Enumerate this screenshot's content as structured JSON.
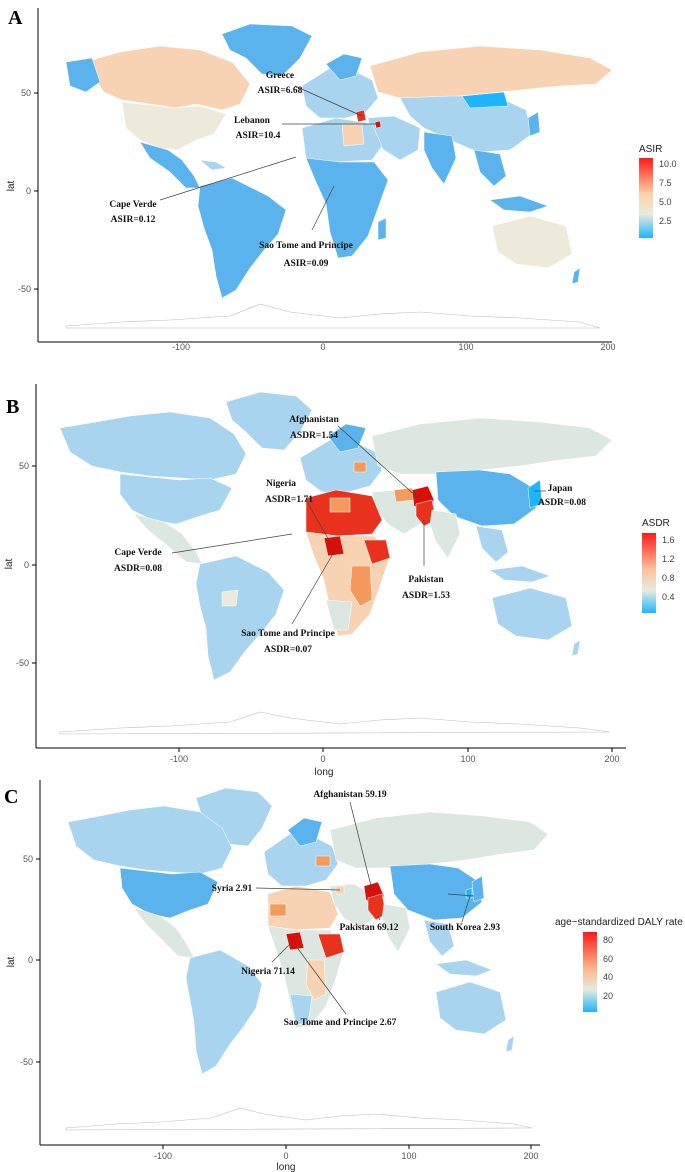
{
  "figure": {
    "panels": [
      {
        "id": "A",
        "letter": "A",
        "ylabel": "lat",
        "xlabel": "",
        "x_ticks": [
          "-100",
          "0",
          "100",
          "200"
        ],
        "y_ticks": [
          "50",
          "0",
          "-50"
        ],
        "legend": {
          "title": "ASIR",
          "ticks": [
            "10.0",
            "7.5",
            "5.0",
            "2.5"
          ],
          "colors": [
            "#ff1a1a",
            "#ffd1a8",
            "#e6ecdc",
            "#1eb4ff"
          ]
        },
        "annotations": [
          {
            "text": "Greece",
            "value": "ASIR=6.68"
          },
          {
            "text": "Lebanon",
            "value": "ASIR=10.4"
          },
          {
            "text": "Cape Verde",
            "value": "ASIR=0.12"
          },
          {
            "text": "Sao Tome and Principe",
            "value": "ASIR=0.09"
          }
        ]
      },
      {
        "id": "B",
        "letter": "B",
        "ylabel": "lat",
        "xlabel": "long",
        "x_ticks": [
          "-100",
          "0",
          "100",
          "200"
        ],
        "y_ticks": [
          "50",
          "0",
          "-50"
        ],
        "legend": {
          "title": "ASDR",
          "ticks": [
            "1.6",
            "1.2",
            "0.8",
            "0.4"
          ],
          "colors": [
            "#ff1a1a",
            "#ffc19a",
            "#e6ecdc",
            "#1eb4ff"
          ]
        },
        "annotations": [
          {
            "text": "Afghanistan",
            "value": "ASDR=1.54"
          },
          {
            "text": "Nigeria",
            "value": "ASDR=1.71"
          },
          {
            "text": "Japan",
            "value": "ASDR=0.08"
          },
          {
            "text": "Cape Verde",
            "value": "ASDR=0.08"
          },
          {
            "text": "Pakistan",
            "value": "ASDR=1.53"
          },
          {
            "text": "Sao Tome and Principe",
            "value": "ASDR=0.07"
          }
        ]
      },
      {
        "id": "C",
        "letter": "C",
        "ylabel": "lat",
        "xlabel": "long",
        "x_ticks": [
          "-100",
          "0",
          "100",
          "200"
        ],
        "y_ticks": [
          "50",
          "0",
          "-50"
        ],
        "legend": {
          "title": "age−standardized DALY rate",
          "ticks": [
            "80",
            "60",
            "40",
            "20"
          ],
          "colors": [
            "#ff1a1a",
            "#ffb488",
            "#e6ecdc",
            "#1eb4ff"
          ]
        },
        "annotations": [
          {
            "text": "Afghanistan 59.19"
          },
          {
            "text": "Syria 2.91"
          },
          {
            "text": "South Korea 2.93"
          },
          {
            "text": "Pakistan 69.12"
          },
          {
            "text": "Nigeria 71.14"
          },
          {
            "text": "Sao Tome and Principe 2.67"
          }
        ]
      }
    ],
    "colors": {
      "low": "#5ab3ec",
      "light": "#a9d4ef",
      "neutral": "#dde7e2",
      "beige": "#eeeadb",
      "peach": "#f7d3b4",
      "orange": "#f39a5c",
      "red": "#e8321e",
      "darkred": "#d8100a"
    }
  }
}
